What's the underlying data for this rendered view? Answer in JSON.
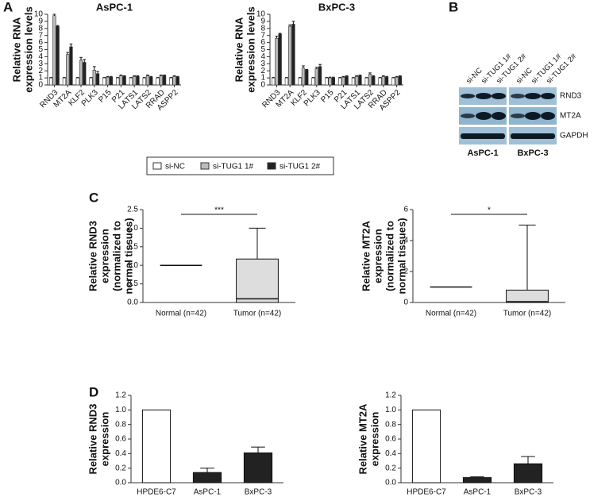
{
  "panels": [
    "A",
    "B",
    "C",
    "D"
  ],
  "blot": {
    "groups": [
      {
        "name": "AsPC-1",
        "lanes": [
          "si-NC",
          "si-TUG1 1#",
          "si-TUG1 2#"
        ]
      },
      {
        "name": "BxPC-3",
        "lanes": [
          "si-NC",
          "si-TUG1 1#",
          "si-TUG1 2#"
        ]
      }
    ],
    "proteins": [
      "RND3",
      "MT2A",
      "GAPDH"
    ]
  },
  "chart_data": [
    {
      "type": "grouped_bar",
      "title": "AsPC-1",
      "ylabel": [
        "Relative RNA",
        "expression levels"
      ],
      "categories": [
        "RND3",
        "MT2A",
        "KLF2",
        "PLK3",
        "P15",
        "P21",
        "LATS1",
        "LATS2",
        "RRAD",
        "ASPP2"
      ],
      "series": [
        {
          "name": "si-NC",
          "color": "#ffffff",
          "values": [
            1,
            1,
            1,
            1,
            1,
            1,
            1,
            1,
            1,
            1
          ],
          "errors": [
            0.05,
            0.05,
            0.05,
            0.05,
            0.05,
            0.05,
            0.05,
            0.05,
            0.05,
            0.05
          ]
        },
        {
          "name": "si-TUG1 1#",
          "color": "#bbbbbb",
          "values": [
            9.8,
            4.3,
            3.5,
            2.1,
            1.1,
            1.3,
            1.2,
            1.3,
            1.3,
            1.2
          ],
          "errors": [
            0.2,
            0.3,
            0.4,
            0.5,
            0.1,
            0.1,
            0.1,
            0.1,
            0.1,
            0.1
          ]
        },
        {
          "name": "si-TUG1 2#",
          "color": "#222222",
          "values": [
            8.3,
            5.4,
            3.2,
            1.6,
            1.1,
            1.2,
            1.2,
            1.1,
            1.3,
            1.1
          ],
          "errors": [
            0.1,
            0.4,
            0.4,
            0.3,
            0.1,
            0.1,
            0.1,
            0.1,
            0.1,
            0.1
          ]
        }
      ],
      "ylim": [
        0,
        10
      ],
      "yticks": [
        0,
        1,
        2,
        3,
        4,
        5,
        6,
        7,
        8,
        9,
        10
      ]
    },
    {
      "type": "grouped_bar",
      "title": "BxPC-3",
      "ylabel": [
        "Relative RNA",
        "expression levels"
      ],
      "categories": [
        "RND3",
        "MT2A",
        "KLF2",
        "PLK3",
        "P15",
        "P21",
        "LATS1",
        "LATS2",
        "RRAD",
        "ASPP2"
      ],
      "series": [
        {
          "name": "si-NC",
          "color": "#ffffff",
          "values": [
            1,
            1,
            1,
            1,
            1,
            1,
            1,
            1,
            1,
            1
          ],
          "errors": [
            0.05,
            0.05,
            0.05,
            0.05,
            0.05,
            0.05,
            0.05,
            0.05,
            0.05,
            0.05
          ]
        },
        {
          "name": "si-TUG1 1#",
          "color": "#bbbbbb",
          "values": [
            6.6,
            8.3,
            2.4,
            2.3,
            1.0,
            1.1,
            1.2,
            1.5,
            1.2,
            1.1
          ],
          "errors": [
            0.3,
            0.2,
            0.3,
            0.2,
            0.1,
            0.1,
            0.1,
            0.2,
            0.1,
            0.1
          ]
        },
        {
          "name": "si-TUG1 2#",
          "color": "#222222",
          "values": [
            7.2,
            8.6,
            2.1,
            2.6,
            1.0,
            1.2,
            1.3,
            1.2,
            1.1,
            1.2
          ],
          "errors": [
            0.1,
            0.4,
            0.1,
            0.3,
            0.1,
            0.1,
            0.1,
            0.1,
            0.1,
            0.1
          ]
        }
      ],
      "ylim": [
        0,
        10
      ],
      "yticks": [
        0,
        1,
        2,
        3,
        4,
        5,
        6,
        7,
        8,
        9,
        10
      ]
    },
    {
      "type": "box",
      "ylabel": [
        "Relative RND3",
        "expression",
        "(normalized to",
        "normal tissues)"
      ],
      "categories": [
        "Normal (n=42)",
        "Tumor (n=42)"
      ],
      "boxes": [
        {
          "min": 1,
          "q1": 1,
          "median": 1,
          "q3": 1,
          "max": 1
        },
        {
          "min": 0,
          "q1": 0,
          "median": 0.1,
          "q3": 1.17,
          "max": 2.0
        }
      ],
      "annotation": "***",
      "ylim": [
        0,
        2.5
      ],
      "yticks": [
        {
          "value": 0,
          "label": "0.0"
        },
        {
          "value": 0.5,
          "label": "0.5"
        },
        {
          "value": 1,
          "label": "1.0"
        },
        {
          "value": 1.5,
          "label": "1.5"
        },
        {
          "value": 2,
          "label": "2.0"
        },
        {
          "value": 2.5,
          "label": "2.5"
        }
      ]
    },
    {
      "type": "box",
      "ylabel": [
        "Relative MT2A",
        "expression",
        "(normalized to",
        "normal tissues)"
      ],
      "categories": [
        "Normal (n=42)",
        "Tumor (n=42)"
      ],
      "boxes": [
        {
          "min": 1,
          "q1": 1,
          "median": 1,
          "q3": 1,
          "max": 1
        },
        {
          "min": 0,
          "q1": 0,
          "median": 0.05,
          "q3": 0.8,
          "max": 5.0
        }
      ],
      "annotation": "*",
      "ylim": [
        0,
        6
      ],
      "yticks": [
        0,
        2,
        4,
        6
      ]
    },
    {
      "type": "bar",
      "ylabel": [
        "Relative RND3",
        "expression"
      ],
      "categories": [
        "HPDE6-C7",
        "AsPC-1",
        "BxPC-3"
      ],
      "values": [
        1.0,
        0.14,
        0.41
      ],
      "errors": [
        0,
        0.06,
        0.08
      ],
      "colors": [
        "#ffffff",
        "#222222",
        "#222222"
      ],
      "ylim": [
        0,
        1.2
      ],
      "yticks": [
        {
          "value": 0,
          "label": "0.0"
        },
        {
          "value": 0.2,
          "label": "0.2"
        },
        {
          "value": 0.4,
          "label": "0.4"
        },
        {
          "value": 0.6,
          "label": "0.6"
        },
        {
          "value": 0.8,
          "label": "0.8"
        },
        {
          "value": 1,
          "label": "1.0"
        },
        {
          "value": 1.2,
          "label": "1.2"
        }
      ]
    },
    {
      "type": "bar",
      "ylabel": [
        "Relative MT2A",
        "expression"
      ],
      "categories": [
        "HPDE6-C7",
        "AsPC-1",
        "BxPC-3"
      ],
      "values": [
        1.0,
        0.07,
        0.26
      ],
      "errors": [
        0,
        0.01,
        0.1
      ],
      "colors": [
        "#ffffff",
        "#222222",
        "#222222"
      ],
      "ylim": [
        0,
        1.2
      ],
      "yticks": [
        {
          "value": 0,
          "label": "0.0"
        },
        {
          "value": 0.2,
          "label": "0.2"
        },
        {
          "value": 0.4,
          "label": "0.4"
        },
        {
          "value": 0.6,
          "label": "0.6"
        },
        {
          "value": 0.8,
          "label": "0.8"
        },
        {
          "value": 1,
          "label": "1.0"
        },
        {
          "value": 1.2,
          "label": "1.2"
        }
      ]
    }
  ]
}
